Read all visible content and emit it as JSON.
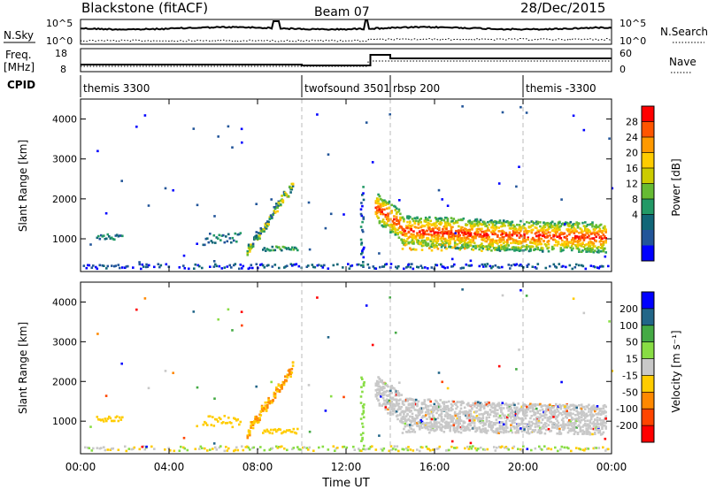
{
  "header": {
    "radar": "Blackstone (fitACF)",
    "beam": "Beam 07",
    "date": "28/Dec/2015"
  },
  "top_panels": {
    "nsky_label": "N.Sky",
    "nsky_ticks": [
      "10^5",
      "10^0"
    ],
    "nsearch_label": "N.Search",
    "nsearch_ticks": [
      "10^5",
      "10^0"
    ],
    "freq_label_1": "Freq.",
    "freq_label_2": "[MHz]",
    "freq_ticks": [
      "18",
      "8"
    ],
    "nave_label": "Nave",
    "nave_ticks": [
      "60",
      "0"
    ],
    "cpid_label": "CPID"
  },
  "cpid_segments": [
    {
      "start_hour": 0.0,
      "label": "themis 3300"
    },
    {
      "start_hour": 10.0,
      "label": "twofsound 3501"
    },
    {
      "start_hour": 14.0,
      "label": "rbsp 200"
    },
    {
      "start_hour": 20.0,
      "label": "themis -3300"
    }
  ],
  "colorbars": {
    "power": {
      "title": "Power [dB]",
      "labels": [
        "28",
        "24",
        "20",
        "16",
        "12",
        "8",
        "4"
      ],
      "colors": [
        "#ff0000",
        "#ff5500",
        "#ff9900",
        "#ffcc00",
        "#cccc00",
        "#66bb33",
        "#229966",
        "#116677",
        "#225599",
        "#0000ff"
      ]
    },
    "velocity": {
      "title": "Velocity [m s⁻¹]",
      "labels": [
        "200",
        "100",
        "50",
        "15",
        "-15",
        "-50",
        "-100",
        "-200"
      ],
      "colors": [
        "#0000ff",
        "#226688",
        "#44aa44",
        "#88dd44",
        "#c8c8c8",
        "#ffcc00",
        "#ff8800",
        "#ff4400",
        "#ff0000"
      ]
    }
  },
  "chart_data": [
    {
      "type": "heatmap",
      "panel": "power",
      "ylabel": "Slant Range [km]",
      "y_ticks": [
        "4000",
        "3000",
        "2000",
        "1000"
      ],
      "ylim": [
        180,
        4500
      ],
      "xlim_hours": [
        0,
        24
      ],
      "dashed_lines_hours": [
        10,
        14,
        20
      ]
    },
    {
      "type": "heatmap",
      "panel": "velocity",
      "ylabel": "Slant Range [km]",
      "y_ticks": [
        "4000",
        "3000",
        "2000",
        "1000"
      ],
      "ylim": [
        180,
        4500
      ],
      "xlim_hours": [
        0,
        24
      ],
      "dashed_lines_hours": [
        10,
        14,
        20
      ]
    }
  ],
  "time_axis": {
    "xlabel": "Time UT",
    "ticks": [
      "00:00",
      "04:00",
      "08:00",
      "12:00",
      "16:00",
      "20:00",
      "00:00"
    ]
  }
}
